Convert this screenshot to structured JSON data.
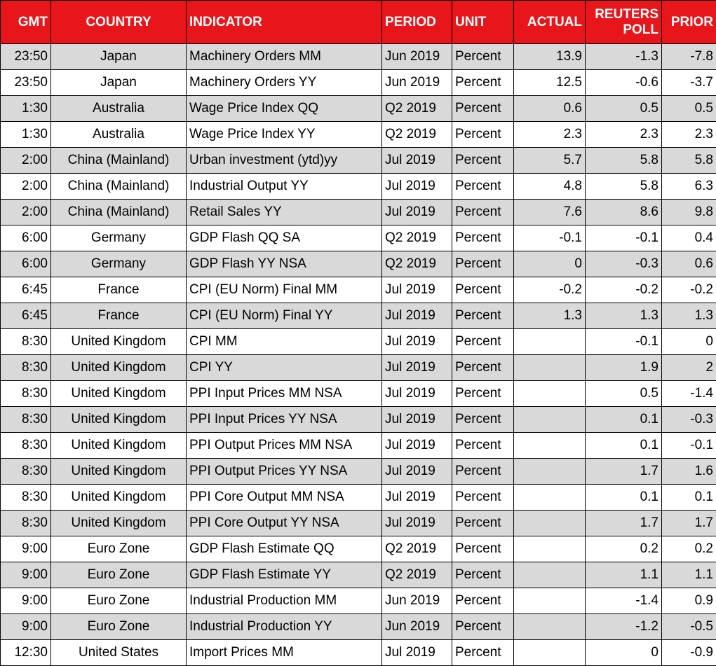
{
  "table": {
    "header": [
      "GMT",
      "COUNTRY",
      "INDICATOR",
      "PERIOD",
      "UNIT",
      "ACTUAL",
      "REUTERS POLL",
      "PRIOR"
    ],
    "rows": [
      [
        "23:50",
        "Japan",
        "Machinery Orders MM",
        "Jun 2019",
        "Percent",
        "13.9",
        "-1.3",
        "-7.8"
      ],
      [
        "23:50",
        "Japan",
        "Machinery Orders YY",
        "Jun 2019",
        "Percent",
        "12.5",
        "-0.6",
        "-3.7"
      ],
      [
        "1:30",
        "Australia",
        "Wage Price Index QQ",
        "Q2 2019",
        "Percent",
        "0.6",
        "0.5",
        "0.5"
      ],
      [
        "1:30",
        "Australia",
        "Wage Price Index YY",
        "Q2 2019",
        "Percent",
        "2.3",
        "2.3",
        "2.3"
      ],
      [
        "2:00",
        "China (Mainland)",
        "Urban investment (ytd)yy",
        "Jul 2019",
        "Percent",
        "5.7",
        "5.8",
        "5.8"
      ],
      [
        "2:00",
        "China (Mainland)",
        "Industrial Output YY",
        "Jul 2019",
        "Percent",
        "4.8",
        "5.8",
        "6.3"
      ],
      [
        "2:00",
        "China (Mainland)",
        "Retail Sales YY",
        "Jul 2019",
        "Percent",
        "7.6",
        "8.6",
        "9.8"
      ],
      [
        "6:00",
        "Germany",
        "GDP Flash QQ SA",
        "Q2 2019",
        "Percent",
        "-0.1",
        "-0.1",
        "0.4"
      ],
      [
        "6:00",
        "Germany",
        "GDP Flash YY NSA",
        "Q2 2019",
        "Percent",
        "0",
        "-0.3",
        "0.6"
      ],
      [
        "6:45",
        "France",
        "CPI (EU Norm) Final MM",
        "Jul 2019",
        "Percent",
        "-0.2",
        "-0.2",
        "-0.2"
      ],
      [
        "6:45",
        "France",
        "CPI (EU Norm) Final YY",
        "Jul 2019",
        "Percent",
        "1.3",
        "1.3",
        "1.3"
      ],
      [
        "8:30",
        "United Kingdom",
        "CPI MM",
        "Jul 2019",
        "Percent",
        null,
        "-0.1",
        "0"
      ],
      [
        "8:30",
        "United Kingdom",
        "CPI YY",
        "Jul 2019",
        "Percent",
        null,
        "1.9",
        "2"
      ],
      [
        "8:30",
        "United Kingdom",
        "PPI Input Prices MM NSA",
        "Jul 2019",
        "Percent",
        null,
        "0.5",
        "-1.4"
      ],
      [
        "8:30",
        "United Kingdom",
        "PPI Input Prices YY NSA",
        "Jul 2019",
        "Percent",
        null,
        "0.1",
        "-0.3"
      ],
      [
        "8:30",
        "United Kingdom",
        "PPI Output Prices MM NSA",
        "Jul 2019",
        "Percent",
        null,
        "0.1",
        "-0.1"
      ],
      [
        "8:30",
        "United Kingdom",
        "PPI Output Prices YY NSA",
        "Jul 2019",
        "Percent",
        null,
        "1.7",
        "1.6"
      ],
      [
        "8:30",
        "United Kingdom",
        "PPI Core Output MM NSA",
        "Jul 2019",
        "Percent",
        null,
        "0.1",
        "0.1"
      ],
      [
        "8:30",
        "United Kingdom",
        "PPI Core Output YY NSA",
        "Jul 2019",
        "Percent",
        null,
        "1.7",
        "1.7"
      ],
      [
        "9:00",
        "Euro Zone",
        "GDP Flash Estimate QQ",
        "Q2 2019",
        "Percent",
        null,
        "0.2",
        "0.2"
      ],
      [
        "9:00",
        "Euro Zone",
        "GDP Flash Estimate YY",
        "Q2 2019",
        "Percent",
        null,
        "1.1",
        "1.1"
      ],
      [
        "9:00",
        "Euro Zone",
        "Industrial Production MM",
        "Jun 2019",
        "Percent",
        null,
        "-1.4",
        "0.9"
      ],
      [
        "9:00",
        "Euro Zone",
        "Industrial Production YY",
        "Jun 2019",
        "Percent",
        null,
        "-1.2",
        "-0.5"
      ],
      [
        "12:30",
        "United States",
        "Import Prices MM",
        "Jul 2019",
        "Percent",
        null,
        "0",
        "-0.9"
      ]
    ]
  }
}
